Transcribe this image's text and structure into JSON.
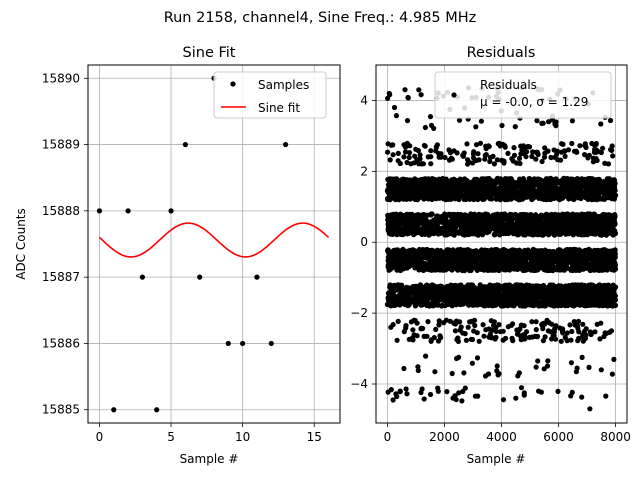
{
  "figure": {
    "suptitle": "Run 2158, channel4, Sine Freq.: 4.985 MHz"
  },
  "chart_data": [
    {
      "type": "scatter",
      "title": "Sine Fit",
      "xlabel": "Sample #",
      "ylabel": "ADC Counts",
      "xlim": [
        -0.8,
        16.8
      ],
      "ylim": [
        15884.8,
        15890.2
      ],
      "xticks": [
        0,
        5,
        10,
        15
      ],
      "yticks": [
        15885,
        15886,
        15887,
        15888,
        15889,
        15890
      ],
      "grid": true,
      "legend_position": "upper-right",
      "series": [
        {
          "name": "Samples",
          "kind": "markers",
          "color": "#000000",
          "x": [
            0,
            1,
            2,
            3,
            4,
            5,
            6,
            7,
            8,
            9,
            10,
            11,
            12,
            13
          ],
          "y": [
            15888,
            15885,
            15888,
            15887,
            15885,
            15888,
            15889,
            15887,
            15890,
            15886,
            15886,
            15887,
            15886,
            15889
          ]
        },
        {
          "name": "Sine fit",
          "kind": "line",
          "color": "#ff0000",
          "model": {
            "offset": 15887.56,
            "amplitude": 0.255,
            "period": 8.0,
            "phase_x_of_max": 6.2,
            "x_start": 0,
            "x_end": 16
          }
        }
      ]
    },
    {
      "type": "scatter",
      "title": "Residuals",
      "xlabel": "Sample #",
      "ylabel": "",
      "xlim": [
        -400,
        8400
      ],
      "ylim": [
        -5.1,
        5.0
      ],
      "xticks": [
        0,
        2000,
        4000,
        6000,
        8000
      ],
      "yticks": [
        -4,
        -2,
        0,
        2,
        4
      ],
      "grid": true,
      "legend_position": "upper-right",
      "legend_lines": [
        "Residuals",
        "μ = -0.0, σ = 1.29"
      ],
      "series": [
        {
          "name": "Residuals",
          "kind": "markers",
          "color": "#000000",
          "x_range": [
            0,
            8000
          ],
          "bands": [
            {
              "y_center": 1.5,
              "spread": 0.3,
              "density": "dense"
            },
            {
              "y_center": 0.5,
              "spread": 0.3,
              "density": "dense"
            },
            {
              "y_center": -0.5,
              "spread": 0.3,
              "density": "dense"
            },
            {
              "y_center": -1.5,
              "spread": 0.3,
              "density": "dense"
            },
            {
              "y_center": 2.5,
              "spread": 0.3,
              "density": "sparse"
            },
            {
              "y_center": -2.5,
              "spread": 0.3,
              "density": "sparse"
            },
            {
              "y_center": 3.5,
              "spread": 0.3,
              "density": "rare"
            },
            {
              "y_center": -3.5,
              "spread": 0.3,
              "density": "rare"
            },
            {
              "y_center": 4.2,
              "spread": 0.2,
              "density": "rare"
            },
            {
              "y_center": -4.3,
              "spread": 0.2,
              "density": "rare"
            }
          ],
          "sample_points": [
            [
              250,
              3.8
            ],
            [
              1100,
              4.3
            ],
            [
              2450,
              4.1
            ],
            [
              5300,
              4.3
            ],
            [
              7050,
              3.9
            ],
            [
              200,
              -4.45
            ],
            [
              450,
              -4.2
            ],
            [
              2300,
              -4.4
            ],
            [
              2500,
              -4.25
            ],
            [
              4500,
              -4.4
            ],
            [
              4800,
              -4.25
            ],
            [
              5300,
              -4.2
            ],
            [
              7100,
              -4.7
            ],
            [
              7500,
              -3.6
            ],
            [
              6450,
              -3.4
            ]
          ]
        }
      ]
    }
  ]
}
